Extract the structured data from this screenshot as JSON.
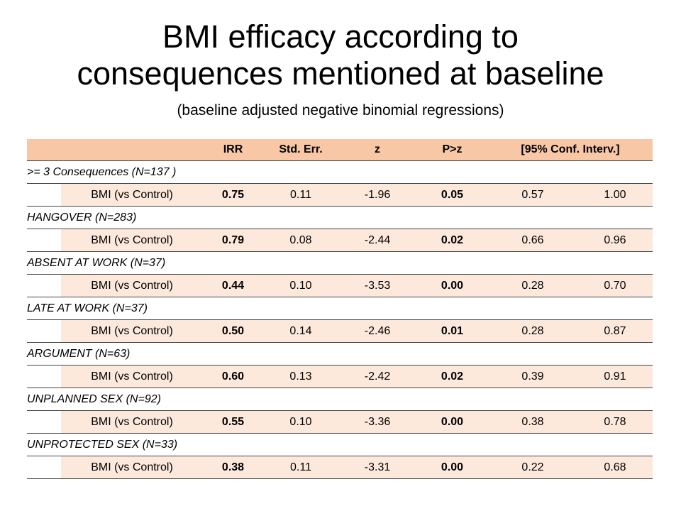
{
  "title_line1": "BMI efficacy according to",
  "title_line2": "consequences mentioned at baseline",
  "subtitle": "(baseline adjusted negative binomial regressions)",
  "table": {
    "headers": [
      "IRR",
      "Std. Err.",
      "z",
      "P>z",
      "[95% Conf. Interv.]"
    ],
    "groups": [
      {
        "label": ">= 3 Consequences (N=137 )",
        "row": {
          "label": "BMI (vs Control)",
          "irr": "0.75",
          "se": "0.11",
          "z": "-1.96",
          "p": "0.05",
          "ci_low": "0.57",
          "ci_high": "1.00"
        }
      },
      {
        "label": "HANGOVER (N=283)",
        "row": {
          "label": "BMI (vs Control)",
          "irr": "0.79",
          "se": "0.08",
          "z": "-2.44",
          "p": "0.02",
          "ci_low": "0.66",
          "ci_high": "0.96"
        }
      },
      {
        "label": "ABSENT AT WORK (N=37)",
        "row": {
          "label": "BMI (vs Control)",
          "irr": "0.44",
          "se": "0.10",
          "z": "-3.53",
          "p": "0.00",
          "ci_low": "0.28",
          "ci_high": "0.70"
        }
      },
      {
        "label": "LATE AT WORK (N=37)",
        "row": {
          "label": "BMI (vs Control)",
          "irr": "0.50",
          "se": "0.14",
          "z": "-2.46",
          "p": "0.01",
          "ci_low": "0.28",
          "ci_high": "0.87"
        }
      },
      {
        "label": "ARGUMENT (N=63)",
        "row": {
          "label": "BMI (vs Control)",
          "irr": "0.60",
          "se": "0.13",
          "z": "-2.42",
          "p": "0.02",
          "ci_low": "0.39",
          "ci_high": "0.91"
        }
      },
      {
        "label": "UNPLANNED SEX (N=92)",
        "row": {
          "label": "BMI (vs Control)",
          "irr": "0.55",
          "se": "0.10",
          "z": "-3.36",
          "p": "0.00",
          "ci_low": "0.38",
          "ci_high": "0.78"
        }
      },
      {
        "label": "UNPROTECTED SEX (N=33)",
        "row": {
          "label": "BMI (vs Control)",
          "irr": "0.38",
          "se": "0.11",
          "z": "-3.31",
          "p": "0.00",
          "ci_low": "0.22",
          "ci_high": "0.68"
        }
      }
    ]
  }
}
